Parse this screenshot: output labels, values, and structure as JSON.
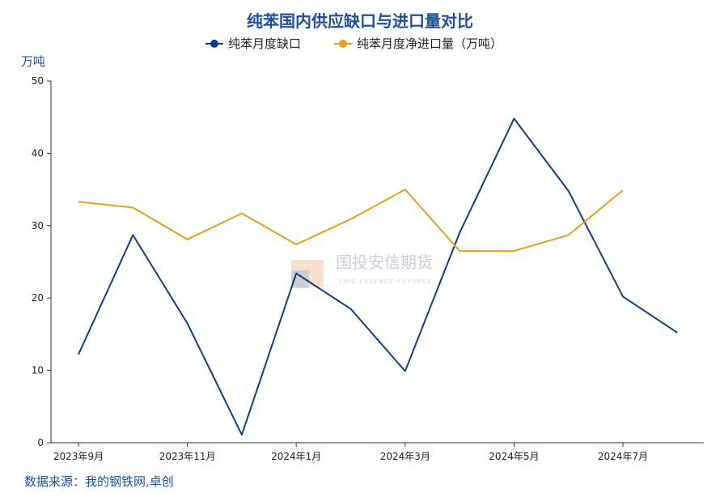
{
  "chart_data": {
    "type": "line",
    "title": "纯苯国内供应缺口与进口量对比",
    "ylabel": "万吨",
    "ylim": [
      0,
      50
    ],
    "yticks": [
      0,
      10,
      20,
      30,
      40,
      50
    ],
    "x": [
      "2023年9月",
      "2023年10月",
      "2023年11月",
      "2023年12月",
      "2024年1月",
      "2024年2月",
      "2024年3月",
      "2024年4月",
      "2024年5月",
      "2024年6月",
      "2024年7月",
      "2024年8月"
    ],
    "xtick_labels": [
      {
        "index": 0,
        "label": "2023年9月"
      },
      {
        "index": 2,
        "label": "2023年11月"
      },
      {
        "index": 4,
        "label": "2024年1月"
      },
      {
        "index": 6,
        "label": "2024年3月"
      },
      {
        "index": 8,
        "label": "2024年5月"
      },
      {
        "index": 10,
        "label": "2024年7月"
      }
    ],
    "series": [
      {
        "name": "纯苯月度缺口",
        "color": "#0d3d87",
        "values": [
          12.2,
          28.7,
          16.5,
          1.1,
          23.4,
          18.5,
          9.9,
          29.0,
          44.8,
          34.8,
          20.2,
          15.2
        ]
      },
      {
        "name": "纯苯月度净进口量（万吨）",
        "color": "#e79e1b",
        "values": [
          33.3,
          32.5,
          28.1,
          31.7,
          27.4,
          30.9,
          35.0,
          26.5,
          26.5,
          28.7,
          34.9,
          null
        ]
      }
    ],
    "legend_position": "top-center",
    "grid": false
  },
  "watermark": {
    "text": "国投安信期货",
    "subtext": "SDIC ESSENCE FUTURES"
  },
  "source": "数据来源：我的钢铁网,卓创"
}
